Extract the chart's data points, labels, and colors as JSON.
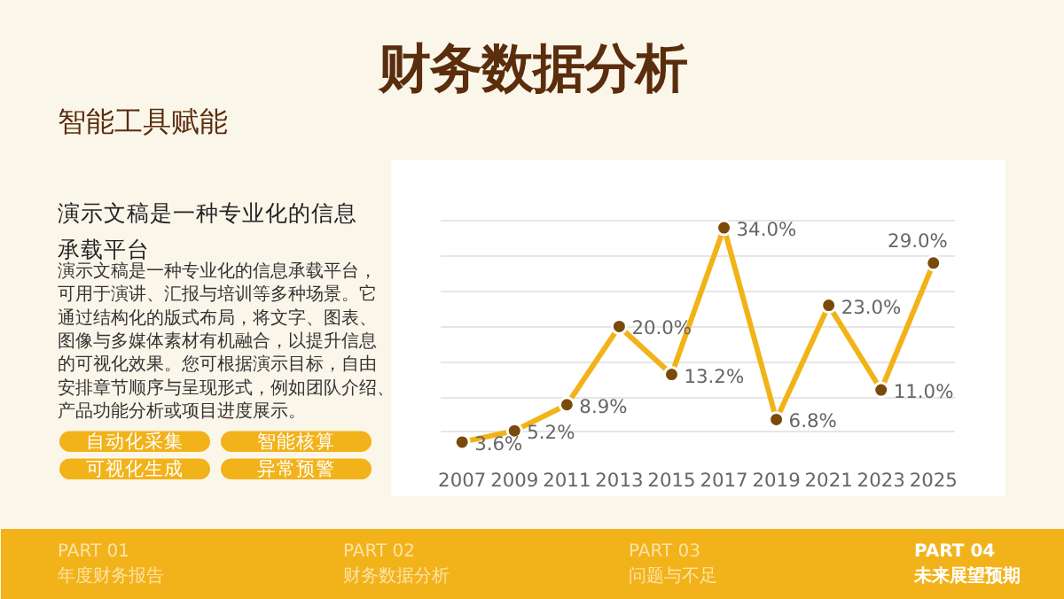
{
  "chart_data": {
    "type": "line",
    "title": "财务数据分析",
    "subtitle": "智能工具赋能",
    "categories": [
      "2007",
      "2009",
      "2011",
      "2013",
      "2015",
      "2017",
      "2019",
      "2021",
      "2023",
      "2025"
    ],
    "series": [
      {
        "color": "#f2b318",
        "values": [
          3.6,
          5.2,
          8.9,
          20.0,
          13.2,
          34.0,
          6.8,
          23.0,
          11.0,
          29.0
        ],
        "value_labels": [
          "3.6%",
          "5.2%",
          "8.9%",
          "20.0%",
          "13.2%",
          "34.0%",
          "6.8%",
          "23.0%",
          "11.0%",
          "29.0%"
        ]
      }
    ],
    "tick_labels": "x",
    "grid": "y",
    "marker": "circle",
    "line_style": "solid",
    "annotations": [
      "演示文稿是一种专业化的信息承载平台",
      "演示文稿是一种专业化的信息承载平台，可用于演讲、汇报与培训等多种场景。它通过结构化的版式布局，将文字、图表、图像与多媒体素材有机融合，以提升信息的可视化效果。您可根据演示目标，自由安排章节顺序与呈现形式，例如团队介绍、产品功能分析或项目进度展示。",
      "自动化采集",
      "智能核算",
      "可视化生成",
      "异常预警",
      "PART 01",
      "年度财务报告",
      "PART 02",
      "财务数据分析",
      "PART 03",
      "问题与不足",
      "PART 04",
      "未来展望预期"
    ]
  }
}
